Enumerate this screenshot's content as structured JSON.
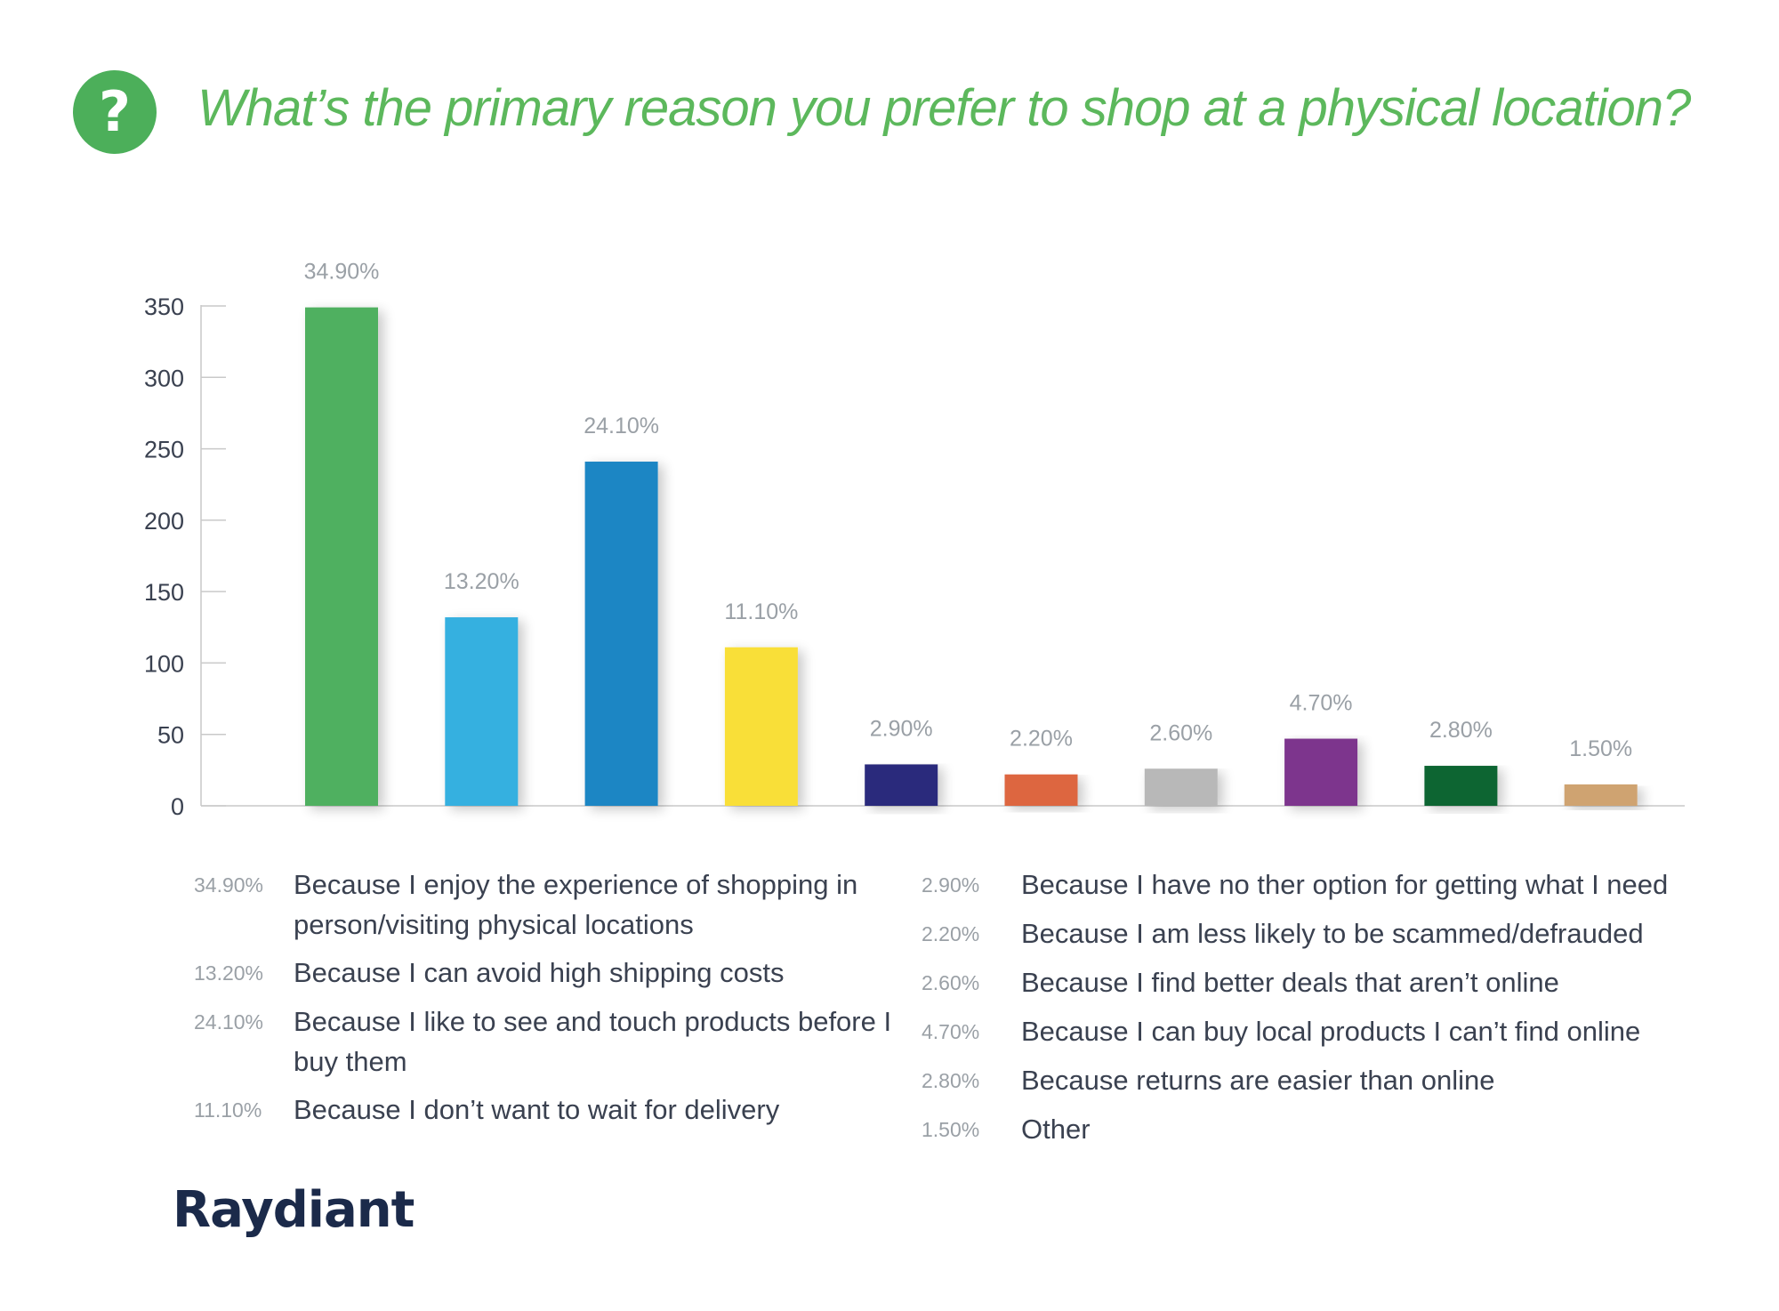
{
  "title": "What’s the primary reason you prefer to shop at a physical location?",
  "icon": "question-mark-icon",
  "brand": "Raydiant",
  "colors": {
    "title": "#5cb85c",
    "icon_bg": "#4caf5a",
    "brand": "#1b2a4a"
  },
  "chart_data": {
    "type": "bar",
    "categories": [
      "Because I enjoy the experience of shopping in person/visiting physical locations",
      "Because I can avoid high shipping costs",
      "Because I like to see and touch products before I buy them",
      "Because I don’t want to wait for delivery",
      "Because I have no ther option for getting what I need",
      "Because I am less likely to be scammed/defrauded",
      "Because I find better deals that aren’t online",
      "Because I can buy local products I can’t find online",
      "Because returns are easier than online",
      "Other"
    ],
    "values": [
      349,
      132,
      241,
      111,
      29,
      22,
      26,
      47,
      28,
      15
    ],
    "data_labels": [
      "34.90%",
      "13.20%",
      "24.10%",
      "11.10%",
      "2.90%",
      "2.20%",
      "2.60%",
      "4.70%",
      "2.80%",
      "1.50%"
    ],
    "colors": [
      "#50b060",
      "#36b0e0",
      "#1e86c4",
      "#f9df38",
      "#2b2c7c",
      "#dd6640",
      "#b8b8b8",
      "#7d358d",
      "#0c6532",
      "#cfa371"
    ],
    "yticks": [
      0,
      50,
      100,
      150,
      200,
      250,
      300,
      350
    ],
    "ylim": [
      0,
      350
    ],
    "grid": false,
    "legend": {
      "placement": "bottom",
      "left": [
        {
          "pct": "34.90%",
          "label": "Because I enjoy the experience of shopping in person/visiting physical locations"
        },
        {
          "pct": "13.20%",
          "label": "Because I can avoid high shipping costs"
        },
        {
          "pct": "24.10%",
          "label": "Because I like to see and touch products before I buy them"
        },
        {
          "pct": "11.10%",
          "label": "Because I don’t want to wait for delivery"
        }
      ],
      "right": [
        {
          "pct": "2.90%",
          "label": "Because I have no ther option for getting what I need"
        },
        {
          "pct": "2.20%",
          "label": "Because I am less likely to be scammed/defrauded"
        },
        {
          "pct": "2.60%",
          "label": "Because I find better deals that aren’t online"
        },
        {
          "pct": "4.70%",
          "label": "Because I can buy local products I can’t find online"
        },
        {
          "pct": "2.80%",
          "label": "Because returns are easier than online"
        },
        {
          "pct": "1.50%",
          "label": "Other"
        }
      ]
    }
  }
}
